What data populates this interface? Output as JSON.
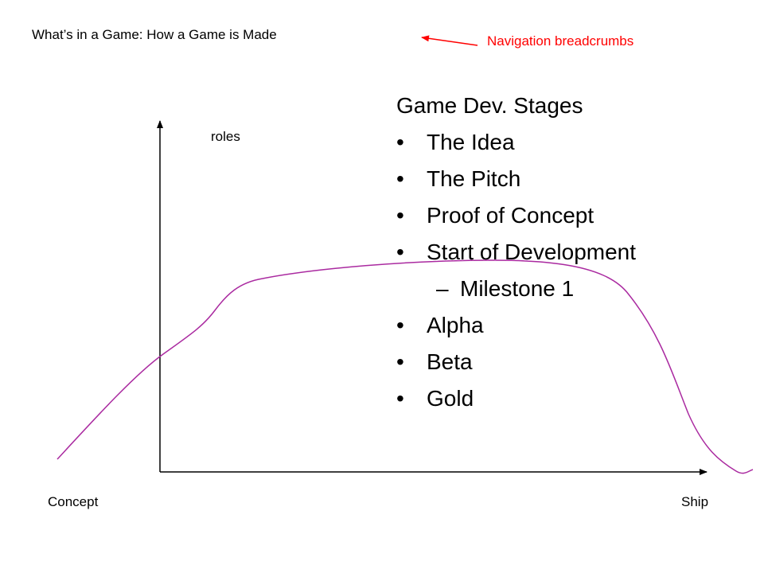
{
  "breadcrumb": "What’s in a Game: How a Game is Made",
  "annotation": {
    "text": "Navigation breadcrumbs",
    "color": "#ff0000"
  },
  "chart": {
    "y_axis_label": "roles",
    "x_start_label": "Concept",
    "x_end_label": "Ship",
    "curve_color": "#aa2aa0"
  },
  "stages": {
    "heading": "Game Dev. Stages",
    "bullet": "•",
    "sub_marker": "–",
    "items": [
      {
        "label": "The Idea"
      },
      {
        "label": "The Pitch"
      },
      {
        "label": "Proof of Concept"
      },
      {
        "label": "Start of Development",
        "sub": "Milestone 1"
      },
      {
        "label": "Alpha"
      },
      {
        "label": "Beta"
      },
      {
        "label": "Gold"
      }
    ]
  }
}
